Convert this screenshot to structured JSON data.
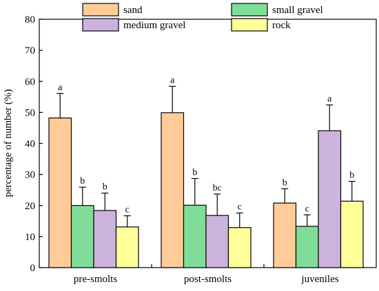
{
  "chart_data": {
    "type": "bar",
    "title": "",
    "xlabel": "",
    "ylabel": "percentage of number (%)",
    "ylim": [
      0,
      80
    ],
    "yticks": [
      0,
      10,
      20,
      30,
      40,
      50,
      60,
      70,
      80
    ],
    "grid": false,
    "legend_position": "top",
    "categories": [
      "pre-smolts",
      "post-smolts",
      "juveniles"
    ],
    "series": [
      {
        "name": "sand",
        "color": "#FFCC99",
        "values": [
          48.2,
          49.9,
          20.8
        ],
        "errors": [
          7.9,
          8.5,
          4.6
        ],
        "labels": [
          "a",
          "a",
          "b"
        ]
      },
      {
        "name": "small gravel",
        "color": "#80DD99",
        "values": [
          20.0,
          20.1,
          13.3
        ],
        "errors": [
          5.9,
          8.6,
          3.7
        ],
        "labels": [
          "b",
          "b",
          "c"
        ]
      },
      {
        "name": "medium gravel",
        "color": "#CCB3DD",
        "values": [
          18.4,
          16.8,
          44.1
        ],
        "errors": [
          5.6,
          6.9,
          8.3
        ],
        "labels": [
          "b",
          "bc",
          "a"
        ]
      },
      {
        "name": "rock",
        "color": "#FFFF99",
        "values": [
          13.1,
          12.9,
          21.4
        ],
        "errors": [
          3.6,
          4.7,
          6.4
        ],
        "labels": [
          "c",
          "c",
          "b"
        ]
      }
    ]
  }
}
